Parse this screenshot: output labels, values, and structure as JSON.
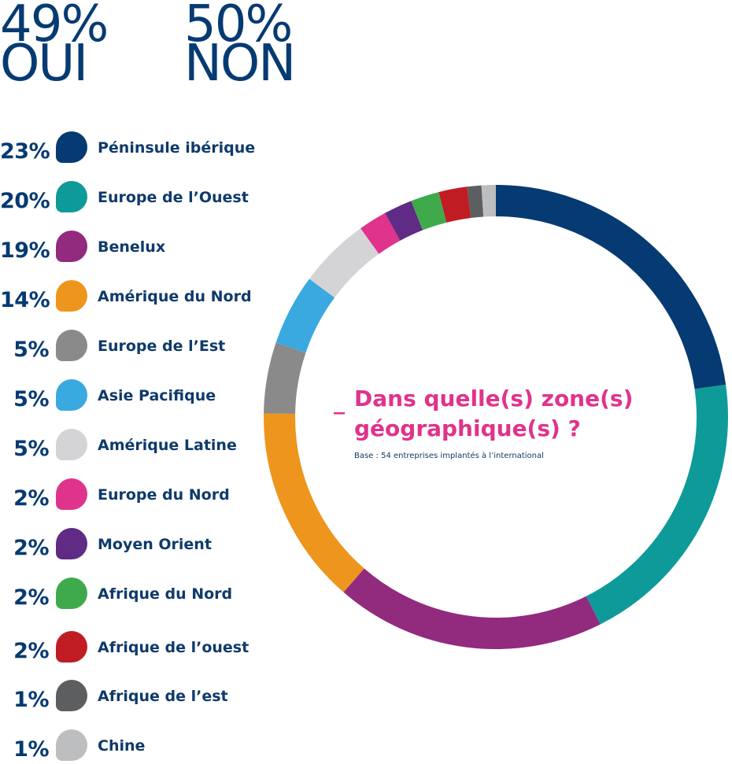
{
  "headline": {
    "oui": {
      "pct": "49%",
      "word": "OUI"
    },
    "non": {
      "pct": "50%",
      "word": "NON"
    }
  },
  "question": {
    "dash": "_",
    "text": "Dans quelle(s) zone(s) géographique(s) ?",
    "base": "Base : 54 entreprises implantés à l’international"
  },
  "chart_data": {
    "type": "pie",
    "donut": true,
    "start": "top",
    "direction": "clockwise",
    "categories": [
      "Péninsule ibérique",
      "Europe de l’Ouest",
      "Benelux",
      "Amérique du Nord",
      "Europe de l’Est",
      "Asie Pacifique",
      "Amérique Latine",
      "Europe du Nord",
      "Moyen Orient",
      "Afrique du Nord",
      "Afrique de l’ouest",
      "Afrique de l’est",
      "Chine"
    ],
    "labels": [
      "23%",
      "20%",
      "19%",
      "14%",
      "5%",
      "5%",
      "5%",
      "2%",
      "2%",
      "2%",
      "2%",
      "1%",
      "1%"
    ],
    "values": [
      23,
      20,
      19,
      14,
      5,
      5,
      5,
      2,
      2,
      2,
      2,
      1,
      1
    ],
    "colors": [
      "#063a72",
      "#0f9a9a",
      "#922a7e",
      "#ee951d",
      "#8a8a8a",
      "#39a9e0",
      "#d4d4d6",
      "#e0338c",
      "#5f2b84",
      "#3faa4c",
      "#c01c24",
      "#5d5e60",
      "#bdbec0"
    ]
  }
}
